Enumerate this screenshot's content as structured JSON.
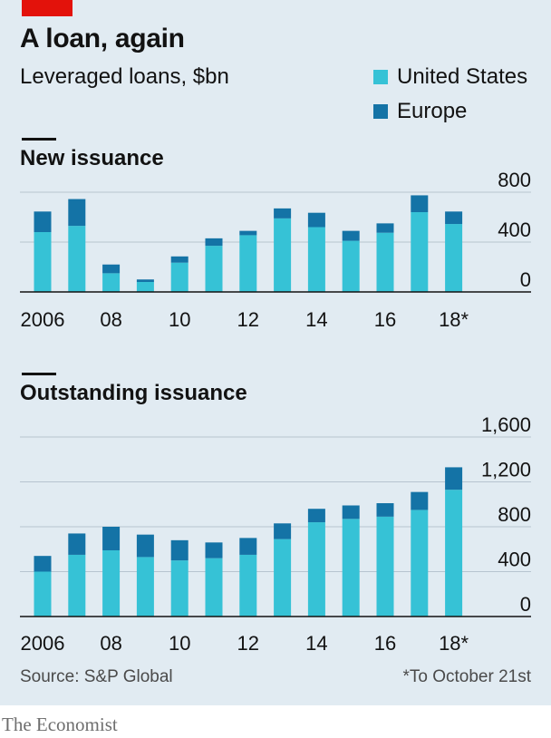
{
  "header": {
    "title": "A loan, again",
    "subtitle": "Leveraged loans, $bn"
  },
  "colors": {
    "united_states": "#36c2d6",
    "europe": "#1473a6",
    "grid": "#b6c4cf",
    "baseline": "#121212",
    "brand_tag": "#e3120b",
    "background": "#e1ebf2"
  },
  "legend": [
    {
      "label": "United States",
      "color": "#36c2d6"
    },
    {
      "label": "Europe",
      "color": "#1473a6"
    }
  ],
  "chart_data": [
    {
      "type": "bar",
      "stacked": true,
      "title": "New issuance",
      "categories": [
        "2006",
        "2007",
        "2008",
        "2009",
        "2010",
        "2011",
        "2012",
        "2013",
        "2014",
        "2015",
        "2016",
        "2017",
        "2018*"
      ],
      "tick_labels": [
        "2006",
        "08",
        "10",
        "12",
        "14",
        "16",
        "18*"
      ],
      "series": [
        {
          "name": "United States",
          "values": [
            480,
            530,
            150,
            80,
            235,
            370,
            455,
            590,
            520,
            410,
            475,
            640,
            545
          ]
        },
        {
          "name": "Europe",
          "values": [
            165,
            215,
            70,
            20,
            50,
            60,
            35,
            80,
            115,
            80,
            75,
            135,
            100
          ]
        }
      ],
      "ylim": [
        0,
        800
      ],
      "yticks": [
        "800",
        "400",
        "0"
      ],
      "ytick_values": [
        800,
        400,
        0
      ],
      "grid": true
    },
    {
      "type": "bar",
      "stacked": true,
      "title": "Outstanding issuance",
      "categories": [
        "2006",
        "2007",
        "2008",
        "2009",
        "2010",
        "2011",
        "2012",
        "2013",
        "2014",
        "2015",
        "2016",
        "2017",
        "2018*"
      ],
      "tick_labels": [
        "2006",
        "08",
        "10",
        "12",
        "14",
        "16",
        "18*"
      ],
      "series": [
        {
          "name": "United States",
          "values": [
            400,
            550,
            590,
            530,
            500,
            520,
            550,
            690,
            840,
            870,
            890,
            950,
            1130
          ]
        },
        {
          "name": "Europe",
          "values": [
            140,
            190,
            210,
            200,
            180,
            140,
            150,
            140,
            120,
            120,
            120,
            160,
            200
          ]
        }
      ],
      "ylim": [
        0,
        1600
      ],
      "yticks": [
        "1,600",
        "1,200",
        "800",
        "400",
        "0"
      ],
      "ytick_values": [
        1600,
        1200,
        800,
        400,
        0
      ],
      "grid": true
    }
  ],
  "footer": {
    "source": "Source: S&P Global",
    "footnote": "*To October 21st",
    "brand": "The Economist"
  }
}
